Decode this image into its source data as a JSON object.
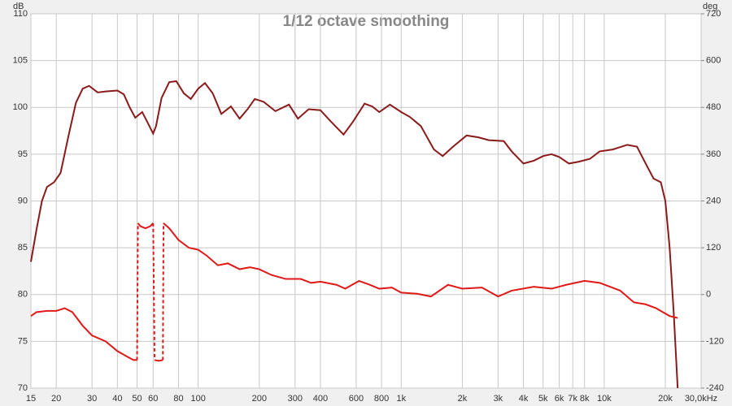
{
  "chart_data": {
    "type": "line",
    "title": "1/12 octave smoothing",
    "y_label": "dB",
    "y2_label": "deg",
    "log_x": true,
    "grid": true,
    "xlim": [
      15,
      30000
    ],
    "xticks": [
      15,
      20,
      30,
      40,
      50,
      60,
      80,
      100,
      200,
      300,
      400,
      600,
      800,
      {
        "value": 1000,
        "label": "1k"
      },
      {
        "value": 2000,
        "label": "2k"
      },
      {
        "value": 3000,
        "label": "3k"
      },
      {
        "value": 4000,
        "label": "4k"
      },
      {
        "value": 5000,
        "label": "5k"
      },
      {
        "value": 6000,
        "label": "6k"
      },
      {
        "value": 7000,
        "label": "7k"
      },
      {
        "value": 8000,
        "label": "8k"
      },
      {
        "value": 10000,
        "label": "10k"
      },
      {
        "value": 20000,
        "label": "20k"
      },
      {
        "value": 30000,
        "label": "30,0kHz"
      }
    ],
    "ylim": [
      70,
      110
    ],
    "yticks": [
      70,
      75,
      80,
      85,
      90,
      95,
      100,
      105,
      110
    ],
    "y2lim": [
      -240,
      720
    ],
    "y2ticks": [
      -240,
      -120,
      0,
      120,
      240,
      360,
      480,
      600,
      720
    ],
    "series": [
      {
        "color": "#8b1a1a",
        "x": [
          15,
          16,
          17,
          18,
          19.5,
          21,
          23,
          25,
          27,
          29,
          32,
          35,
          40,
          43,
          46,
          49,
          53,
          56,
          60,
          62,
          66,
          72,
          78,
          85,
          92,
          100,
          108,
          118,
          130,
          145,
          160,
          175,
          190,
          210,
          240,
          280,
          310,
          350,
          400,
          450,
          520,
          580,
          660,
          720,
          780,
          880,
          1000,
          1100,
          1250,
          1450,
          1600,
          1800,
          2100,
          2400,
          2700,
          3200,
          3500,
          4000,
          4500,
          5000,
          5500,
          6000,
          6700,
          7500,
          8500,
          9500,
          11000,
          13000,
          14500,
          16000,
          17500,
          19000,
          20000,
          21000,
          22000,
          23000
        ],
        "values": [
          83.5,
          87,
          90,
          91.5,
          92,
          93,
          97,
          100.5,
          102,
          102.3,
          101.6,
          101.7,
          101.8,
          101.4,
          100,
          98.9,
          99.5,
          98.5,
          97.2,
          98,
          101,
          102.7,
          102.8,
          101.5,
          100.9,
          102,
          102.6,
          101.5,
          99.3,
          100.1,
          98.8,
          99.8,
          100.9,
          100.6,
          99.6,
          100.3,
          98.8,
          99.8,
          99.7,
          98.5,
          97.1,
          98.5,
          100.4,
          100.1,
          99.5,
          100.3,
          99.5,
          99,
          98,
          95.5,
          94.8,
          95.8,
          97,
          96.8,
          96.5,
          96.4,
          95.3,
          94,
          94.3,
          94.8,
          95,
          94.7,
          94,
          94.2,
          94.5,
          95.3,
          95.5,
          96,
          95.8,
          94,
          92.4,
          92,
          90,
          85,
          78,
          70
        ]
      },
      {
        "color": "#e01818",
        "axis": "y2",
        "x": [
          15,
          16,
          18,
          20,
          22,
          24,
          27,
          30,
          35,
          40,
          45,
          48,
          50,
          50.5,
          52,
          55,
          58,
          60,
          61,
          64,
          67,
          67.5,
          72,
          80,
          90,
          100,
          110,
          125,
          140,
          160,
          180,
          200,
          230,
          270,
          320,
          360,
          400,
          480,
          530,
          620,
          700,
          780,
          900,
          1000,
          1200,
          1400,
          1700,
          2000,
          2500,
          3000,
          3500,
          4500,
          5500,
          6500,
          8000,
          9500,
          12000,
          14000,
          16000,
          18000,
          21000,
          23000
        ],
        "values": [
          -55,
          -45,
          -42,
          -42,
          -35,
          -45,
          -80,
          -105,
          -120,
          -145,
          -160,
          -168,
          -168,
          183,
          175,
          170,
          175,
          183,
          -168,
          -170,
          -168,
          183,
          170,
          140,
          120,
          115,
          100,
          75,
          80,
          65,
          70,
          65,
          50,
          40,
          40,
          30,
          33,
          25,
          15,
          35,
          25,
          15,
          18,
          5,
          2,
          -5,
          25,
          15,
          18,
          -5,
          10,
          20,
          15,
          25,
          35,
          30,
          10,
          -20,
          -25,
          -35,
          -55,
          -60
        ]
      }
    ]
  }
}
